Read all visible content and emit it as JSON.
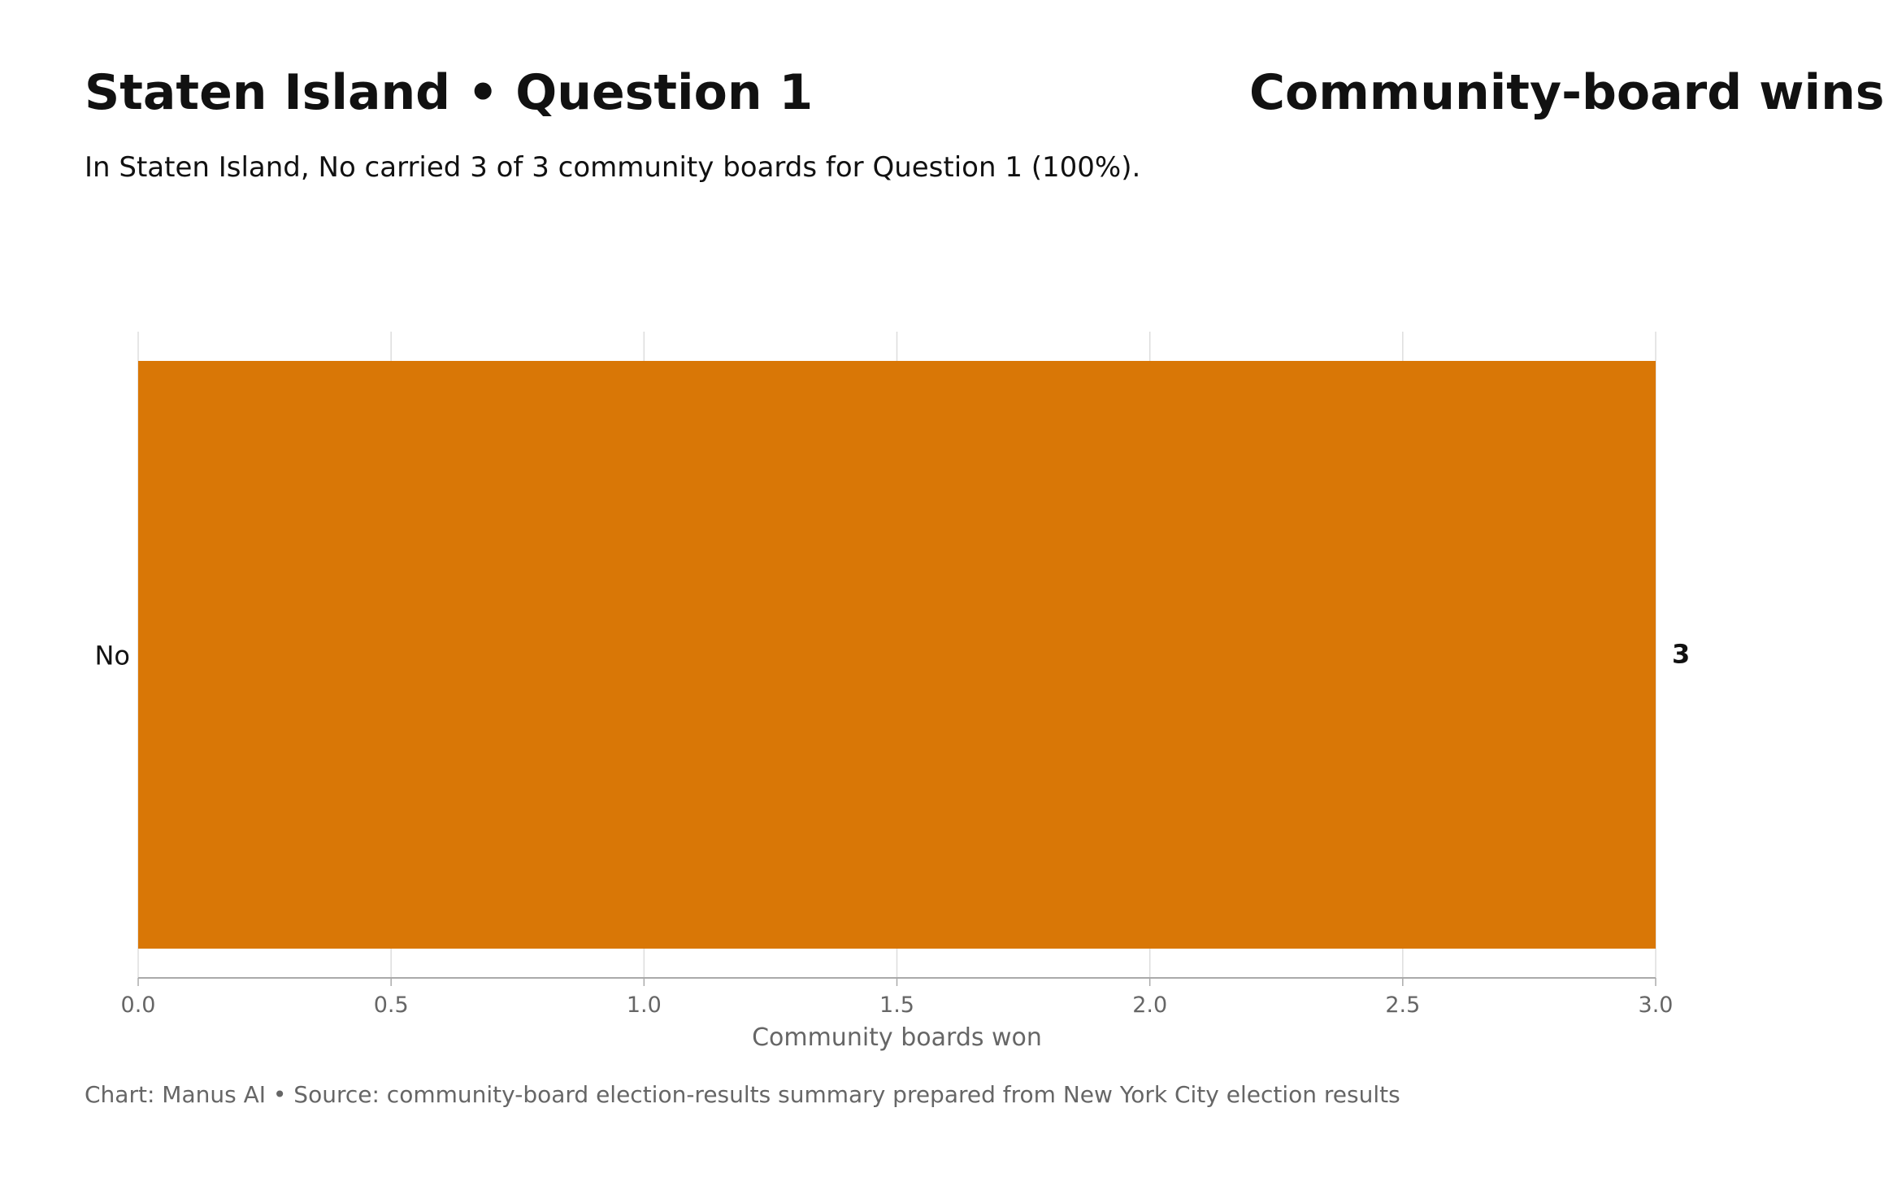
{
  "header": {
    "title": "Staten Island • Question 1",
    "panel_title": "Community-board wins",
    "subtitle": "In Staten Island, No carried 3 of 3 community boards for Question 1 (100%)."
  },
  "footer": {
    "credit": "Chart: Manus AI • Source: community-board election-results summary prepared from New York City election results"
  },
  "colors": {
    "bar": "#d97706",
    "grid": "#dddddd",
    "axis": "#aaaaaa",
    "tick_text": "#666666",
    "label_text": "#111111"
  },
  "chart_data": {
    "type": "bar",
    "orientation": "horizontal",
    "categories": [
      "No"
    ],
    "values": [
      3
    ],
    "data_labels": [
      "3"
    ],
    "title": "Community-board wins",
    "xlabel": "Community boards won",
    "ylabel": "",
    "xlim": [
      0,
      3
    ],
    "xticks": [
      "0.0",
      "0.5",
      "1.0",
      "1.5",
      "2.0",
      "2.5",
      "3.0"
    ],
    "grid": "vertical",
    "legend": "none"
  }
}
